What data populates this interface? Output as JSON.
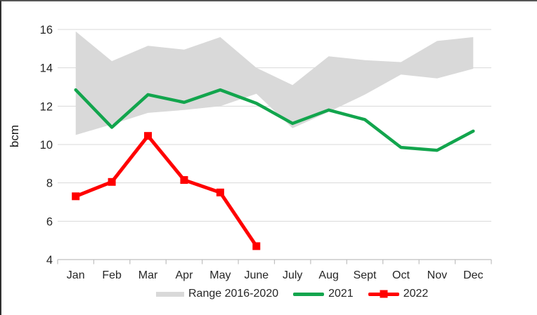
{
  "figure": {
    "title": "",
    "y_axis_label": "bcm"
  },
  "chart_data": {
    "type": "line",
    "title": "",
    "xlabel": "",
    "ylabel": "bcm",
    "categories": [
      "Jan",
      "Feb",
      "Mar",
      "Apr",
      "May",
      "June",
      "July",
      "Aug",
      "Sept",
      "Oct",
      "Nov",
      "Dec"
    ],
    "ylim": [
      4,
      16
    ],
    "y_ticks": [
      4,
      6,
      8,
      10,
      12,
      14,
      16
    ],
    "grid": true,
    "legend_position": "bottom",
    "series": [
      {
        "name": "Range 2016-2020",
        "type": "band",
        "color": "#d9d9d9",
        "upper": [
          15.9,
          14.35,
          15.15,
          14.95,
          15.6,
          14.0,
          13.1,
          14.6,
          14.4,
          14.3,
          15.4,
          15.6
        ],
        "lower": [
          10.5,
          11.05,
          11.65,
          11.8,
          12.0,
          12.65,
          10.85,
          11.7,
          12.6,
          13.65,
          13.45,
          13.95
        ]
      },
      {
        "name": "2021",
        "type": "line",
        "color": "#12a54d",
        "marker": "none",
        "values": [
          12.85,
          10.9,
          12.6,
          12.2,
          12.85,
          12.15,
          11.1,
          11.8,
          11.3,
          9.85,
          9.7,
          10.7
        ]
      },
      {
        "name": "2022",
        "type": "line",
        "color": "#ff0000",
        "marker": "square",
        "values": [
          7.3,
          8.05,
          10.45,
          8.15,
          7.5,
          4.7,
          null,
          null,
          null,
          null,
          null,
          null
        ]
      }
    ],
    "colors": {
      "grid": "#d9d9d9",
      "axis": "#bfbfbf",
      "text": "#262626",
      "background": "#ffffff"
    }
  }
}
